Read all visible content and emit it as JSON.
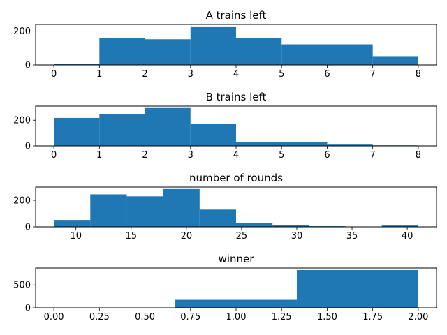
{
  "chart_data": [
    {
      "type": "bar",
      "title": "A trains left",
      "bar_color": "#1f77b4",
      "xlim": [
        -0.4,
        8.4
      ],
      "ylim": [
        0,
        240
      ],
      "xticks": [
        0,
        1,
        2,
        3,
        4,
        5,
        6,
        7,
        8
      ],
      "xtick_labels": [
        "0",
        "1",
        "2",
        "3",
        "4",
        "5",
        "6",
        "7",
        "8"
      ],
      "yticks": [
        0,
        200
      ],
      "ytick_labels": [
        "0",
        "200"
      ],
      "bins": [
        [
          0,
          1
        ],
        [
          1,
          2
        ],
        [
          2,
          3
        ],
        [
          3,
          4
        ],
        [
          4,
          5
        ],
        [
          5,
          7
        ],
        [
          7,
          8
        ]
      ],
      "values": [
        6,
        160,
        152,
        228,
        160,
        122,
        52
      ]
    },
    {
      "type": "bar",
      "title": "B trains left",
      "bar_color": "#1f77b4",
      "xlim": [
        -0.4,
        8.4
      ],
      "ylim": [
        0,
        310
      ],
      "xticks": [
        0,
        1,
        2,
        3,
        4,
        5,
        6,
        7,
        8
      ],
      "xtick_labels": [
        "0",
        "1",
        "2",
        "3",
        "4",
        "5",
        "6",
        "7",
        "8"
      ],
      "yticks": [
        0,
        200
      ],
      "ytick_labels": [
        "0",
        "200"
      ],
      "bins": [
        [
          0,
          1
        ],
        [
          1,
          2
        ],
        [
          2,
          3
        ],
        [
          3,
          4
        ],
        [
          4,
          6
        ],
        [
          6,
          7
        ],
        [
          7,
          8
        ]
      ],
      "values": [
        218,
        245,
        295,
        170,
        30,
        10,
        4
      ]
    },
    {
      "type": "bar",
      "title": "number of rounds",
      "bar_color": "#1f77b4",
      "xlim": [
        6.35,
        42.65
      ],
      "ylim": [
        0,
        300
      ],
      "xticks": [
        10,
        15,
        20,
        25,
        30,
        35,
        40
      ],
      "xtick_labels": [
        "10",
        "15",
        "20",
        "25",
        "30",
        "35",
        "40"
      ],
      "yticks": [
        0,
        200
      ],
      "ytick_labels": [
        "0",
        "200"
      ],
      "bins": [
        [
          8.0,
          11.3
        ],
        [
          11.3,
          14.6
        ],
        [
          14.6,
          17.9
        ],
        [
          17.9,
          21.2
        ],
        [
          21.2,
          24.5
        ],
        [
          24.5,
          27.8
        ],
        [
          27.8,
          31.1
        ],
        [
          31.1,
          34.4
        ],
        [
          34.4,
          37.7
        ],
        [
          37.7,
          41.0
        ]
      ],
      "values": [
        52,
        245,
        230,
        285,
        130,
        28,
        14,
        5,
        0,
        10
      ]
    },
    {
      "type": "bar",
      "title": "winner",
      "bar_color": "#1f77b4",
      "xlim": [
        -0.1,
        2.1
      ],
      "ylim": [
        0,
        870
      ],
      "xticks": [
        0.0,
        0.25,
        0.5,
        0.75,
        1.0,
        1.25,
        1.5,
        1.75,
        2.0
      ],
      "xtick_labels": [
        "0.00",
        "0.25",
        "0.50",
        "0.75",
        "1.00",
        "1.25",
        "1.50",
        "1.75",
        "2.00"
      ],
      "yticks": [
        0,
        500
      ],
      "ytick_labels": [
        "0",
        "500"
      ],
      "bins": [
        [
          0.0,
          0.6667
        ],
        [
          0.6667,
          1.3333
        ],
        [
          1.3333,
          2.0
        ]
      ],
      "values": [
        0,
        175,
        825
      ]
    }
  ]
}
